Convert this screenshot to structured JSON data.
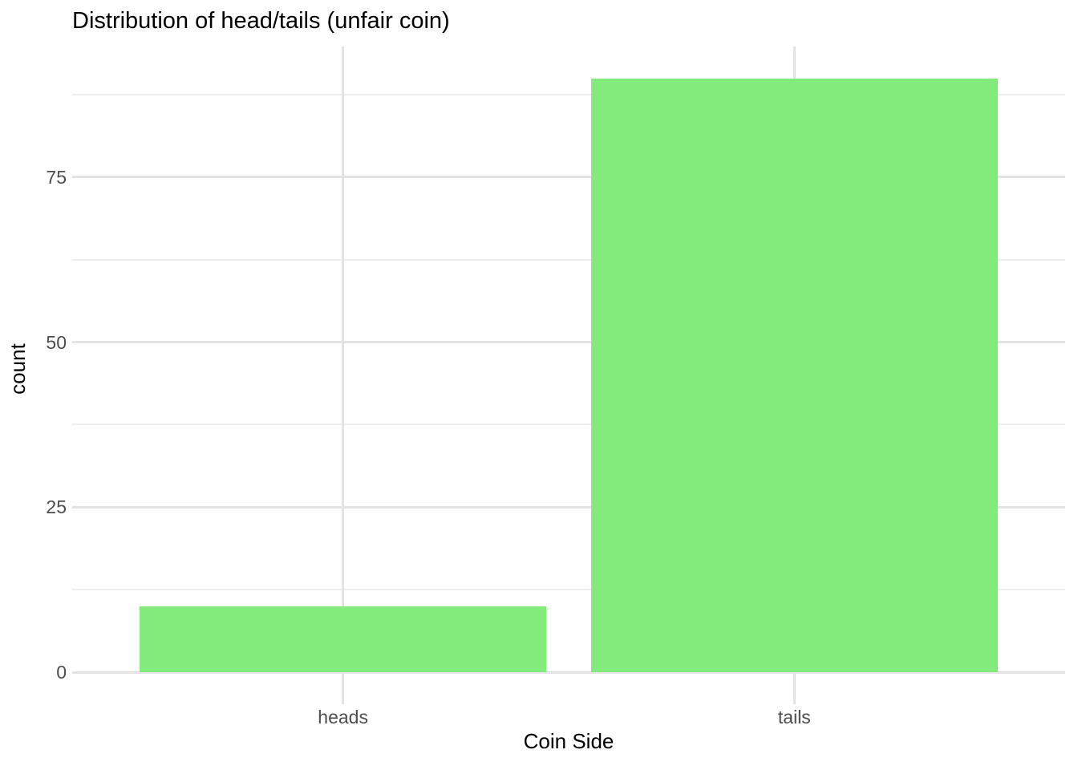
{
  "chart_data": {
    "type": "bar",
    "title": "Distribution of head/tails (unfair coin)",
    "xlabel": "Coin Side",
    "ylabel": "count",
    "categories": [
      "heads",
      "tails"
    ],
    "values": [
      10,
      90
    ],
    "ylim": [
      0,
      94.8
    ],
    "yticks_major": [
      0,
      25,
      50,
      75
    ],
    "yticks_minor": [
      12.5,
      37.5,
      62.5,
      87.5
    ],
    "grid": "major and minor, light gray on white",
    "legend_position": "none",
    "bar_color": "#83EB7C",
    "grid_major_color": "#e3e3e3",
    "grid_minor_color": "#ededed",
    "axis_tick_color": "#e3e3e3",
    "tick_label_color": "#4d4d4d",
    "title_color": "#000000",
    "axis_title_color": "#000000",
    "background_color": "#ffffff"
  }
}
